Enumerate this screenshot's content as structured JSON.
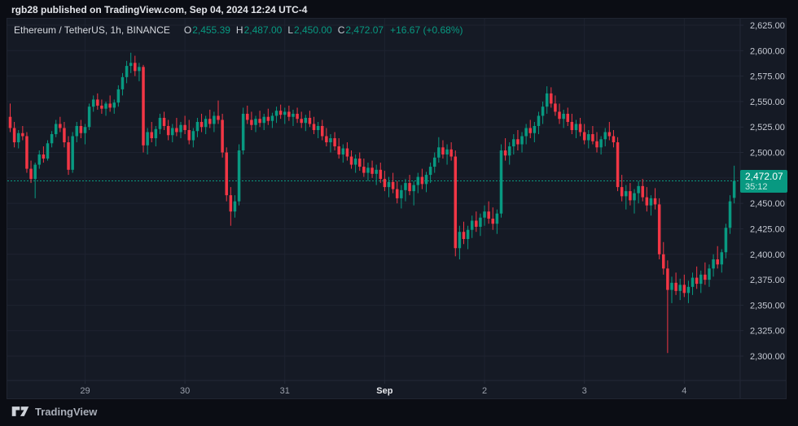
{
  "publish_bar": {
    "text": "rgb28 published on TradingView.com, Sep 04, 2024 12:24 UTC-4"
  },
  "legend": {
    "title": "Ethereum / TetherUS, 1h, BINANCE",
    "ohlc": [
      {
        "label": "O",
        "value": "2,455.39"
      },
      {
        "label": "H",
        "value": "2,487.00"
      },
      {
        "label": "L",
        "value": "2,450.00"
      },
      {
        "label": "C",
        "value": "2,472.07"
      }
    ],
    "change": "+16.67 (+0.68%)"
  },
  "footer": {
    "brand": "TradingView"
  },
  "colors": {
    "up": "#089981",
    "down": "#f23645",
    "grid": "#1e2330",
    "separator": "#232836",
    "axis_text": "#c6cad3",
    "time_text": "#9ba1ac",
    "bold_tick_text": "#e8eaee",
    "pane_bg": "#151a25",
    "outer_bg": "#0b0d14",
    "last_price_line": "#089981",
    "badge_bg": "#089981"
  },
  "chart_data": {
    "type": "candlestick",
    "title": "Ethereum / TetherUS, 1h, BINANCE",
    "symbol": "Ethereum / TetherUS",
    "interval": "1h",
    "exchange": "BINANCE",
    "legend_position": "top-left",
    "grid": true,
    "price_axis": {
      "min": 2300,
      "max": 2625,
      "step": 25,
      "tick_labels": [
        "2,625.00",
        "2,600.00",
        "2,575.00",
        "2,550.00",
        "2,525.00",
        "2,500.00",
        "2,475.00",
        "2,450.00",
        "2,425.00",
        "2,400.00",
        "2,375.00",
        "2,350.00",
        "2,325.00",
        "2,300.00"
      ]
    },
    "time_axis": {
      "ticks": [
        {
          "label": "29",
          "index": 18,
          "bold": false
        },
        {
          "label": "30",
          "index": 42,
          "bold": false
        },
        {
          "label": "31",
          "index": 66,
          "bold": false
        },
        {
          "label": "Sep",
          "index": 90,
          "bold": true
        },
        {
          "label": "2",
          "index": 114,
          "bold": false
        },
        {
          "label": "3",
          "index": 138,
          "bold": false
        },
        {
          "label": "4",
          "index": 162,
          "bold": false
        }
      ]
    },
    "last": {
      "price": 2472.07,
      "price_text": "2,472.07",
      "countdown": "35:12"
    },
    "candles": [
      [
        2535,
        2548,
        2520,
        2524
      ],
      [
        2524,
        2530,
        2505,
        2510
      ],
      [
        2510,
        2522,
        2504,
        2519
      ],
      [
        2519,
        2526,
        2512,
        2516
      ],
      [
        2516,
        2520,
        2480,
        2484
      ],
      [
        2484,
        2492,
        2470,
        2474
      ],
      [
        2474,
        2490,
        2455,
        2488
      ],
      [
        2488,
        2502,
        2484,
        2498
      ],
      [
        2498,
        2506,
        2490,
        2494
      ],
      [
        2494,
        2512,
        2492,
        2509
      ],
      [
        2509,
        2521,
        2505,
        2518
      ],
      [
        2518,
        2532,
        2515,
        2528
      ],
      [
        2528,
        2535,
        2520,
        2524
      ],
      [
        2524,
        2530,
        2505,
        2510
      ],
      [
        2510,
        2516,
        2478,
        2483
      ],
      [
        2483,
        2520,
        2480,
        2516
      ],
      [
        2516,
        2530,
        2510,
        2526
      ],
      [
        2526,
        2532,
        2514,
        2519
      ],
      [
        2519,
        2528,
        2508,
        2525
      ],
      [
        2525,
        2548,
        2522,
        2545
      ],
      [
        2545,
        2556,
        2540,
        2552
      ],
      [
        2552,
        2558,
        2542,
        2546
      ],
      [
        2546,
        2552,
        2538,
        2543
      ],
      [
        2543,
        2550,
        2536,
        2548
      ],
      [
        2548,
        2556,
        2540,
        2544
      ],
      [
        2544,
        2552,
        2538,
        2549
      ],
      [
        2549,
        2566,
        2545,
        2562
      ],
      [
        2562,
        2578,
        2556,
        2574
      ],
      [
        2574,
        2590,
        2568,
        2585
      ],
      [
        2585,
        2598,
        2578,
        2588
      ],
      [
        2588,
        2595,
        2575,
        2580
      ],
      [
        2580,
        2588,
        2570,
        2584
      ],
      [
        2584,
        2586,
        2500,
        2507
      ],
      [
        2507,
        2524,
        2498,
        2520
      ],
      [
        2520,
        2530,
        2510,
        2514
      ],
      [
        2514,
        2526,
        2506,
        2523
      ],
      [
        2523,
        2538,
        2518,
        2534
      ],
      [
        2534,
        2540,
        2522,
        2526
      ],
      [
        2526,
        2532,
        2512,
        2517
      ],
      [
        2517,
        2528,
        2510,
        2524
      ],
      [
        2524,
        2534,
        2516,
        2520
      ],
      [
        2520,
        2530,
        2514,
        2527
      ],
      [
        2527,
        2536,
        2518,
        2522
      ],
      [
        2522,
        2532,
        2508,
        2512
      ],
      [
        2512,
        2524,
        2505,
        2521
      ],
      [
        2521,
        2534,
        2515,
        2530
      ],
      [
        2530,
        2538,
        2520,
        2525
      ],
      [
        2525,
        2536,
        2518,
        2533
      ],
      [
        2533,
        2542,
        2524,
        2528
      ],
      [
        2528,
        2540,
        2520,
        2536
      ],
      [
        2536,
        2551,
        2528,
        2532
      ],
      [
        2532,
        2538,
        2495,
        2500
      ],
      [
        2500,
        2505,
        2452,
        2458
      ],
      [
        2458,
        2466,
        2428,
        2442
      ],
      [
        2442,
        2458,
        2436,
        2452
      ],
      [
        2452,
        2508,
        2448,
        2502
      ],
      [
        2502,
        2544,
        2498,
        2538
      ],
      [
        2538,
        2546,
        2528,
        2532
      ],
      [
        2532,
        2540,
        2522,
        2527
      ],
      [
        2527,
        2536,
        2520,
        2533
      ],
      [
        2533,
        2541,
        2525,
        2529
      ],
      [
        2529,
        2538,
        2522,
        2535
      ],
      [
        2535,
        2543,
        2527,
        2531
      ],
      [
        2531,
        2539,
        2524,
        2536
      ],
      [
        2536,
        2545,
        2529,
        2541
      ],
      [
        2541,
        2547,
        2533,
        2537
      ],
      [
        2537,
        2544,
        2528,
        2540
      ],
      [
        2540,
        2546,
        2531,
        2535
      ],
      [
        2535,
        2542,
        2526,
        2538
      ],
      [
        2538,
        2544,
        2529,
        2533
      ],
      [
        2533,
        2540,
        2524,
        2529
      ],
      [
        2529,
        2537,
        2521,
        2534
      ],
      [
        2534,
        2541,
        2525,
        2528
      ],
      [
        2528,
        2535,
        2518,
        2522
      ],
      [
        2522,
        2530,
        2514,
        2526
      ],
      [
        2526,
        2532,
        2512,
        2516
      ],
      [
        2516,
        2524,
        2506,
        2510
      ],
      [
        2510,
        2518,
        2500,
        2514
      ],
      [
        2514,
        2520,
        2502,
        2506
      ],
      [
        2506,
        2514,
        2494,
        2498
      ],
      [
        2498,
        2508,
        2490,
        2504
      ],
      [
        2504,
        2510,
        2492,
        2496
      ],
      [
        2496,
        2502,
        2484,
        2488
      ],
      [
        2488,
        2498,
        2480,
        2494
      ],
      [
        2494,
        2500,
        2482,
        2486
      ],
      [
        2486,
        2494,
        2476,
        2480
      ],
      [
        2480,
        2490,
        2472,
        2485
      ],
      [
        2485,
        2492,
        2475,
        2479
      ],
      [
        2479,
        2488,
        2468,
        2483
      ],
      [
        2483,
        2490,
        2470,
        2474
      ],
      [
        2474,
        2482,
        2462,
        2466
      ],
      [
        2466,
        2476,
        2456,
        2471
      ],
      [
        2471,
        2480,
        2460,
        2464
      ],
      [
        2464,
        2472,
        2450,
        2455
      ],
      [
        2455,
        2468,
        2445,
        2463
      ],
      [
        2463,
        2474,
        2452,
        2470
      ],
      [
        2470,
        2478,
        2458,
        2462
      ],
      [
        2462,
        2472,
        2448,
        2468
      ],
      [
        2468,
        2480,
        2460,
        2476
      ],
      [
        2476,
        2484,
        2464,
        2469
      ],
      [
        2469,
        2481,
        2461,
        2478
      ],
      [
        2478,
        2490,
        2470,
        2486
      ],
      [
        2486,
        2500,
        2480,
        2495
      ],
      [
        2495,
        2515,
        2490,
        2505
      ],
      [
        2505,
        2512,
        2494,
        2498
      ],
      [
        2498,
        2508,
        2488,
        2503
      ],
      [
        2503,
        2510,
        2492,
        2496
      ],
      [
        2496,
        2502,
        2398,
        2406
      ],
      [
        2406,
        2428,
        2395,
        2422
      ],
      [
        2422,
        2432,
        2410,
        2415
      ],
      [
        2415,
        2428,
        2405,
        2424
      ],
      [
        2424,
        2438,
        2416,
        2433
      ],
      [
        2433,
        2442,
        2422,
        2427
      ],
      [
        2427,
        2440,
        2418,
        2436
      ],
      [
        2436,
        2448,
        2428,
        2442
      ],
      [
        2442,
        2452,
        2430,
        2435
      ],
      [
        2435,
        2446,
        2424,
        2430
      ],
      [
        2430,
        2444,
        2420,
        2440
      ],
      [
        2440,
        2508,
        2436,
        2502
      ],
      [
        2502,
        2514,
        2492,
        2497
      ],
      [
        2497,
        2510,
        2488,
        2506
      ],
      [
        2506,
        2518,
        2498,
        2513
      ],
      [
        2513,
        2522,
        2502,
        2508
      ],
      [
        2508,
        2520,
        2500,
        2516
      ],
      [
        2516,
        2528,
        2508,
        2524
      ],
      [
        2524,
        2532,
        2514,
        2519
      ],
      [
        2519,
        2530,
        2510,
        2526
      ],
      [
        2526,
        2540,
        2518,
        2536
      ],
      [
        2536,
        2550,
        2528,
        2545
      ],
      [
        2545,
        2565,
        2538,
        2558
      ],
      [
        2558,
        2564,
        2544,
        2548
      ],
      [
        2548,
        2556,
        2536,
        2540
      ],
      [
        2540,
        2548,
        2528,
        2533
      ],
      [
        2533,
        2542,
        2524,
        2538
      ],
      [
        2538,
        2544,
        2526,
        2530
      ],
      [
        2530,
        2538,
        2518,
        2522
      ],
      [
        2522,
        2532,
        2514,
        2528
      ],
      [
        2528,
        2534,
        2516,
        2520
      ],
      [
        2520,
        2528,
        2508,
        2512
      ],
      [
        2512,
        2522,
        2504,
        2518
      ],
      [
        2518,
        2526,
        2508,
        2511
      ],
      [
        2511,
        2520,
        2500,
        2505
      ],
      [
        2505,
        2516,
        2498,
        2513
      ],
      [
        2513,
        2524,
        2506,
        2520
      ],
      [
        2520,
        2530,
        2512,
        2516
      ],
      [
        2516,
        2522,
        2505,
        2510
      ],
      [
        2510,
        2515,
        2462,
        2466
      ],
      [
        2466,
        2478,
        2452,
        2457
      ],
      [
        2457,
        2468,
        2444,
        2462
      ],
      [
        2462,
        2470,
        2448,
        2453
      ],
      [
        2453,
        2464,
        2440,
        2460
      ],
      [
        2460,
        2472,
        2450,
        2467
      ],
      [
        2467,
        2474,
        2452,
        2456
      ],
      [
        2456,
        2466,
        2442,
        2448
      ],
      [
        2448,
        2458,
        2438,
        2455
      ],
      [
        2455,
        2465,
        2444,
        2449
      ],
      [
        2449,
        2455,
        2395,
        2400
      ],
      [
        2400,
        2412,
        2380,
        2386
      ],
      [
        2386,
        2394,
        2303,
        2365
      ],
      [
        2365,
        2378,
        2352,
        2372
      ],
      [
        2372,
        2382,
        2360,
        2364
      ],
      [
        2364,
        2376,
        2355,
        2370
      ],
      [
        2370,
        2380,
        2358,
        2362
      ],
      [
        2362,
        2374,
        2352,
        2368
      ],
      [
        2368,
        2382,
        2360,
        2377
      ],
      [
        2377,
        2388,
        2366,
        2371
      ],
      [
        2371,
        2384,
        2362,
        2380
      ],
      [
        2380,
        2392,
        2370,
        2375
      ],
      [
        2375,
        2390,
        2368,
        2386
      ],
      [
        2386,
        2400,
        2378,
        2395
      ],
      [
        2395,
        2408,
        2386,
        2390
      ],
      [
        2390,
        2405,
        2382,
        2402
      ],
      [
        2402,
        2430,
        2396,
        2426
      ],
      [
        2426,
        2458,
        2420,
        2452
      ],
      [
        2455.39,
        2487,
        2450,
        2472.07
      ]
    ]
  }
}
